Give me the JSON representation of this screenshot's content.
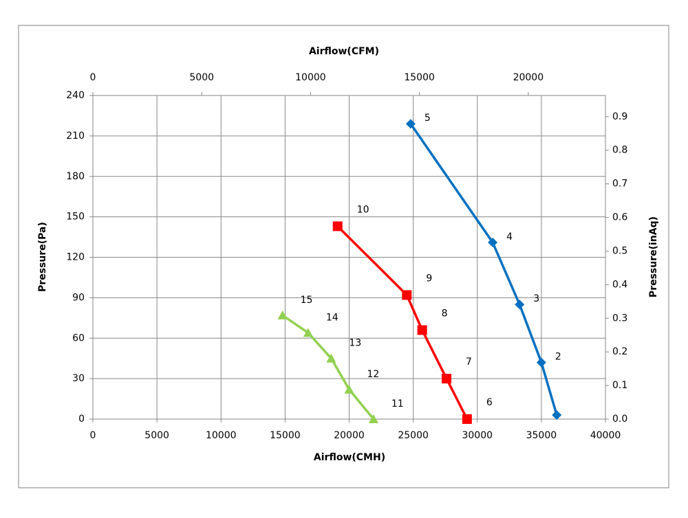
{
  "chart_data": {
    "type": "line",
    "x_label": "Airflow(CMH)",
    "x2_label": "Airflow(CFM)",
    "y_label": "Pressure(Pa)",
    "y2_label": "Pressure(inAq)",
    "xlim": [
      0,
      40000
    ],
    "xticks": [
      0,
      5000,
      10000,
      15000,
      20000,
      25000,
      30000,
      35000,
      40000
    ],
    "x2lim": [
      0,
      23544
    ],
    "x2ticks": [
      0,
      5000,
      10000,
      15000,
      20000
    ],
    "ylim": [
      0,
      240
    ],
    "yticks": [
      0,
      30,
      60,
      90,
      120,
      150,
      180,
      210,
      240
    ],
    "y2lim": [
      0,
      0.963
    ],
    "y2ticks": [
      {
        "value": 0,
        "label": "0.0"
      },
      0.1,
      0.2,
      0.3,
      0.4,
      0.5,
      0.6,
      0.7,
      0.8,
      0.9
    ],
    "grid": true,
    "series": [
      {
        "color": "#0070c0",
        "marker": "diamond",
        "x": [
          36200,
          35000,
          33300,
          31200,
          24800
        ],
        "values": [
          3,
          42,
          85,
          131,
          219
        ],
        "point_labels": [
          null,
          "2",
          "3",
          "4",
          "5"
        ]
      },
      {
        "color": "#ff0000",
        "marker": "square",
        "x": [
          29200,
          27600,
          25700,
          24500,
          19100
        ],
        "values": [
          0,
          30,
          66,
          92,
          143
        ],
        "point_labels": [
          "6",
          "7",
          "8",
          "9",
          "10"
        ]
      },
      {
        "color": "#92d050",
        "marker": "triangle",
        "x": [
          21900,
          20000,
          18600,
          16800,
          14800
        ],
        "values": [
          0,
          22,
          45,
          64,
          77
        ],
        "point_labels": [
          "11",
          "12",
          "13",
          "14",
          "15"
        ]
      }
    ]
  }
}
